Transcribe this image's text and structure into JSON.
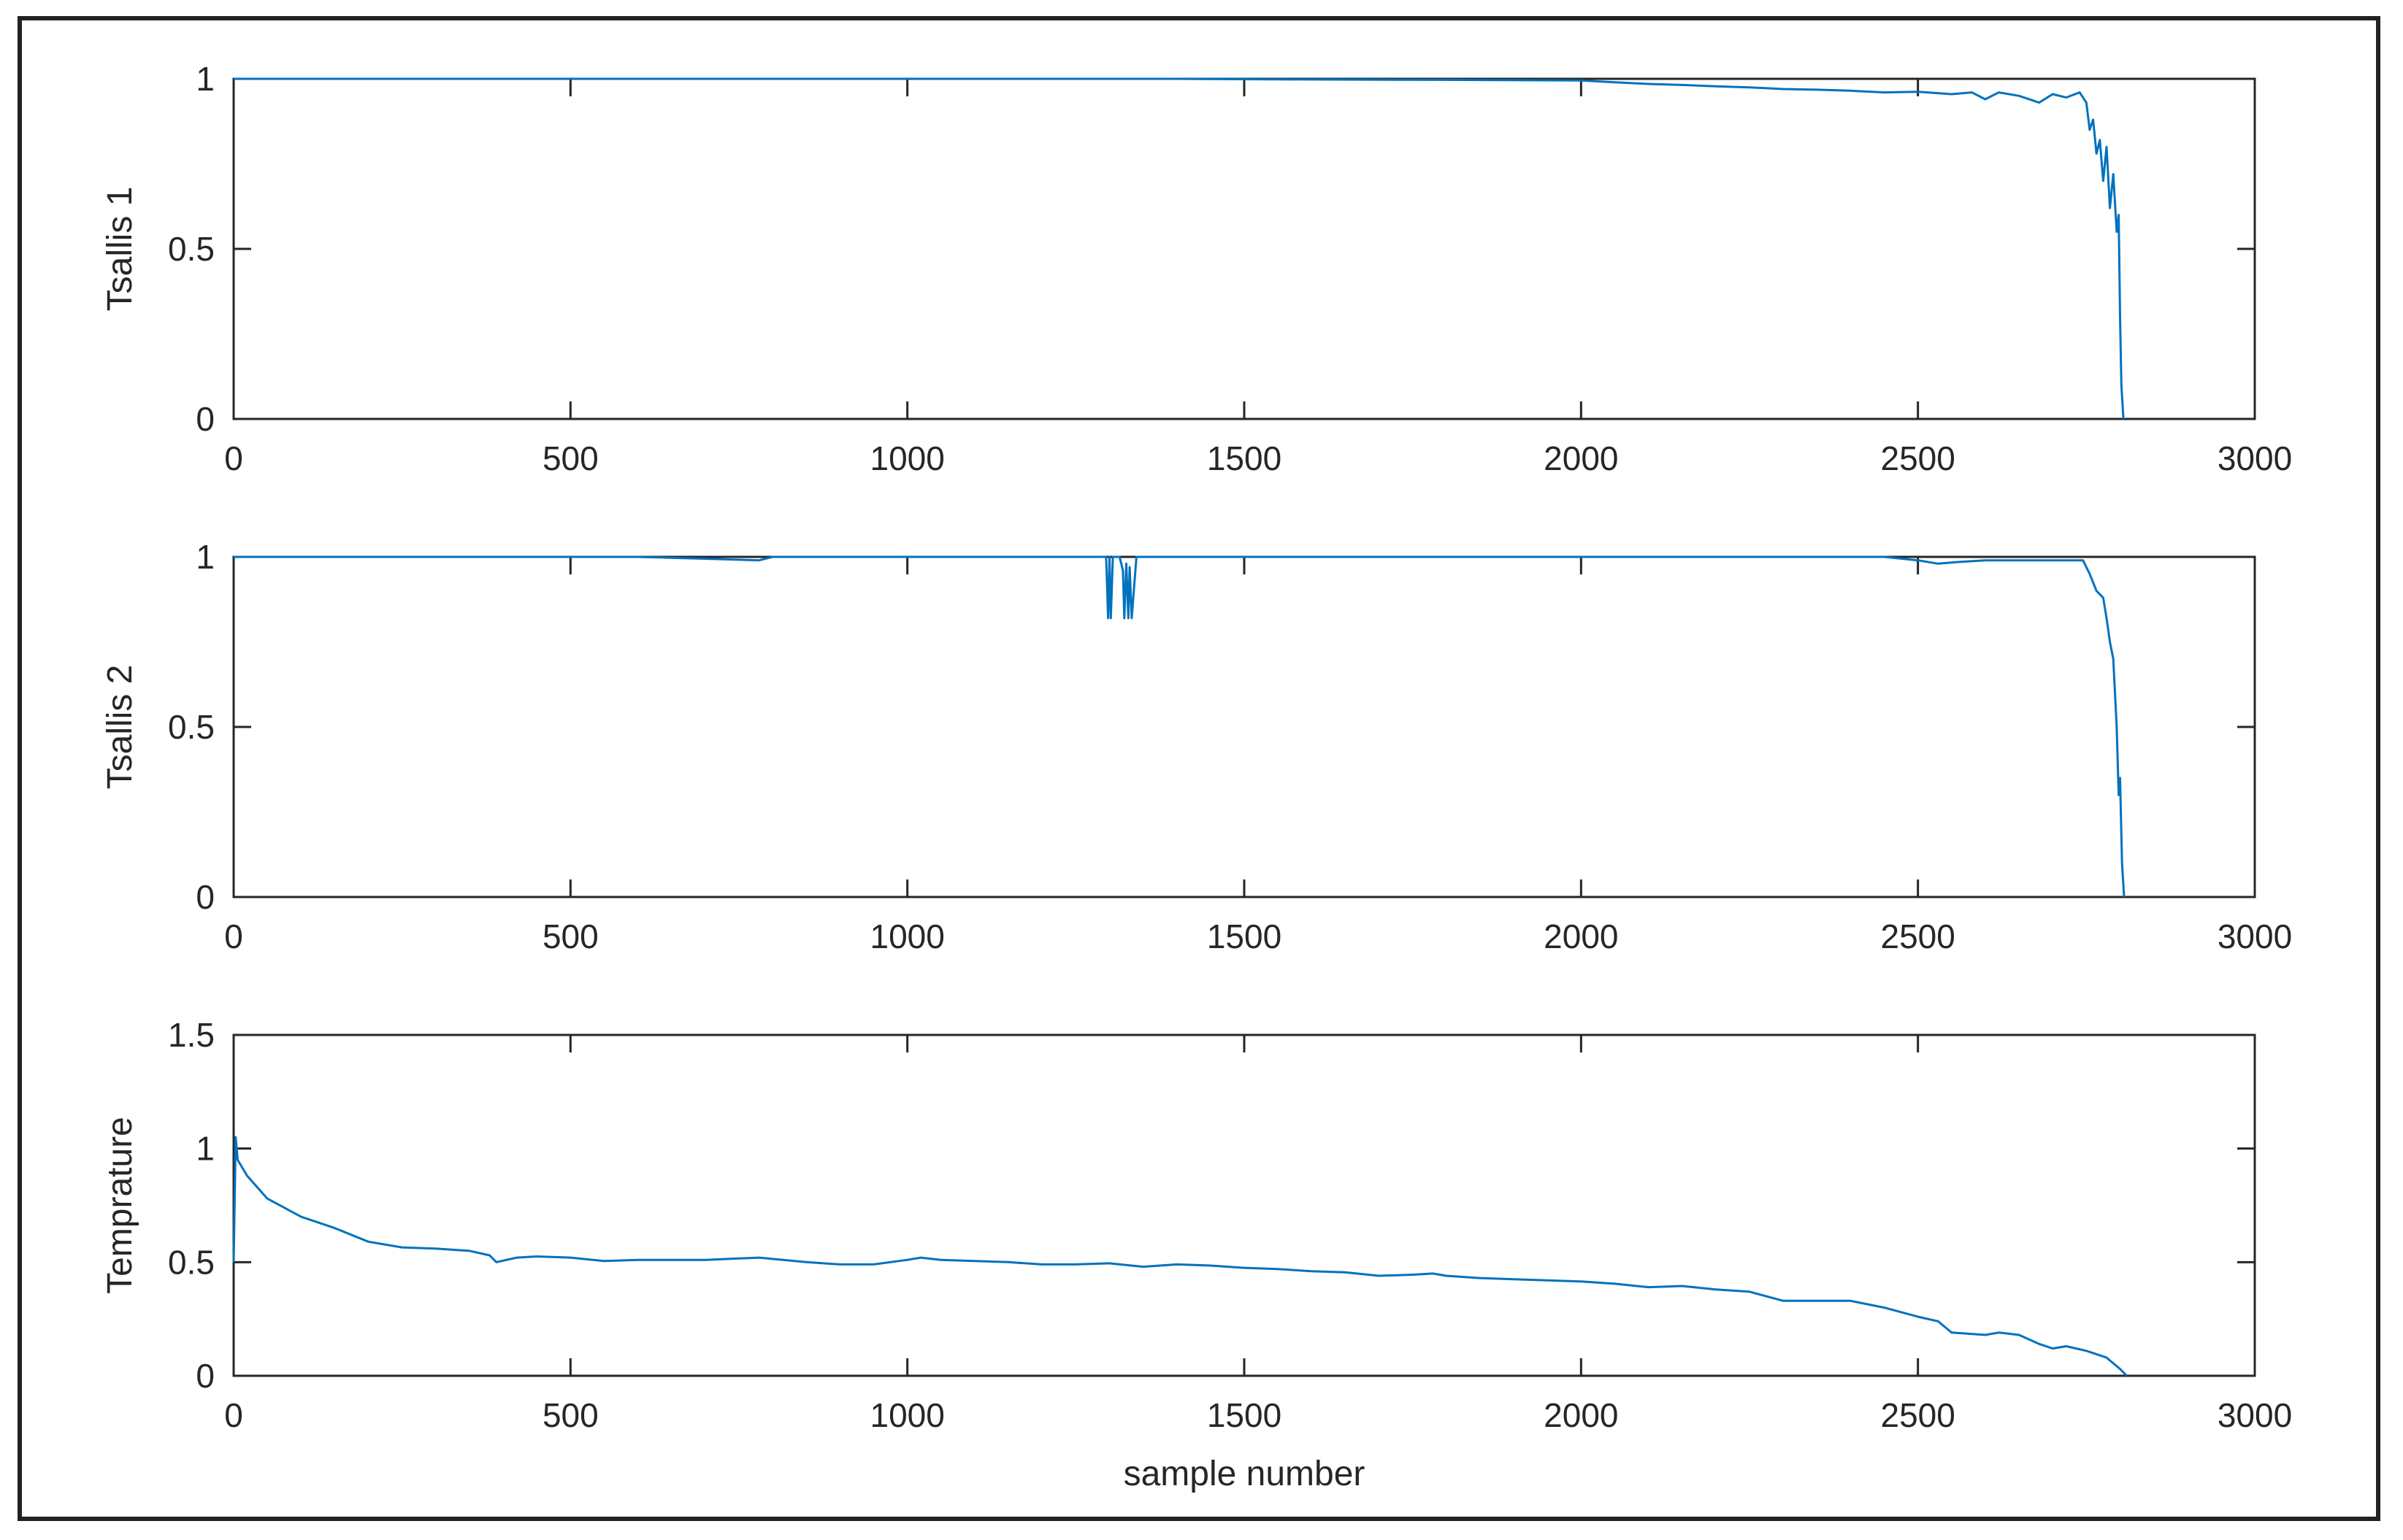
{
  "chart_data": [
    {
      "type": "line",
      "ylabel": "Tsallis 1",
      "xlim": [
        0,
        3000
      ],
      "ylim": [
        0,
        1
      ],
      "xticks": [
        "0",
        "500",
        "1000",
        "1500",
        "2000",
        "2500",
        "3000"
      ],
      "yticks": [
        "0",
        "0.5",
        "1"
      ],
      "grid": false,
      "color": "#0072BD",
      "series": [
        {
          "x": [
            0,
            200,
            400,
            600,
            800,
            1000,
            1200,
            1400,
            1600,
            1800,
            2000,
            2050,
            2100,
            2150,
            2200,
            2250,
            2300,
            2350,
            2400,
            2450,
            2500,
            2550,
            2580,
            2600,
            2620,
            2650,
            2680,
            2700,
            2720,
            2740,
            2750,
            2755,
            2760,
            2765,
            2770,
            2775,
            2780,
            2785,
            2790,
            2795,
            2798,
            2800,
            2802,
            2805
          ],
          "y": [
            1.0,
            1.0,
            1.0,
            1.0,
            1.0,
            1.0,
            1.0,
            1.0,
            0.998,
            0.997,
            0.995,
            0.99,
            0.985,
            0.982,
            0.978,
            0.975,
            0.97,
            0.968,
            0.965,
            0.96,
            0.962,
            0.955,
            0.96,
            0.94,
            0.96,
            0.95,
            0.93,
            0.955,
            0.945,
            0.96,
            0.93,
            0.85,
            0.88,
            0.78,
            0.82,
            0.7,
            0.8,
            0.62,
            0.72,
            0.55,
            0.6,
            0.3,
            0.1,
            0.0
          ]
        }
      ]
    },
    {
      "type": "line",
      "ylabel": "Tsallis 2",
      "xlim": [
        0,
        3000
      ],
      "ylim": [
        0,
        1
      ],
      "xticks": [
        "0",
        "500",
        "1000",
        "1500",
        "2000",
        "2500",
        "3000"
      ],
      "yticks": [
        "0",
        "0.5",
        "1"
      ],
      "grid": false,
      "color": "#0072BD",
      "series": [
        {
          "x": [
            0,
            200,
            400,
            600,
            780,
            800,
            1000,
            1200,
            1295,
            1298,
            1300,
            1302,
            1305,
            1315,
            1320,
            1322,
            1325,
            1328,
            1330,
            1333,
            1340,
            1400,
            1600,
            1800,
            2000,
            2200,
            2450,
            2500,
            2530,
            2560,
            2600,
            2700,
            2745,
            2755,
            2765,
            2775,
            2780,
            2785,
            2790,
            2795,
            2798,
            2800,
            2803,
            2806
          ],
          "y": [
            1.0,
            1.0,
            1.0,
            1.0,
            0.99,
            1.0,
            1.0,
            1.0,
            1.0,
            0.82,
            1.0,
            0.82,
            1.0,
            1.0,
            0.96,
            0.82,
            0.98,
            0.82,
            0.97,
            0.82,
            1.0,
            1.0,
            1.0,
            1.0,
            1.0,
            1.0,
            1.0,
            0.99,
            0.98,
            0.985,
            0.99,
            0.99,
            0.99,
            0.95,
            0.9,
            0.88,
            0.82,
            0.75,
            0.7,
            0.5,
            0.3,
            0.35,
            0.1,
            0.0
          ]
        }
      ]
    },
    {
      "type": "line",
      "ylabel": "Temprature",
      "xlabel": "sample number",
      "xlim": [
        0,
        3000
      ],
      "ylim": [
        0,
        1.5
      ],
      "xticks": [
        "0",
        "500",
        "1000",
        "1500",
        "2000",
        "2500",
        "3000"
      ],
      "yticks": [
        "0",
        "0.5",
        "1",
        "1.5"
      ],
      "grid": false,
      "color": "#0072BD",
      "series": [
        {
          "x": [
            0,
            3,
            6,
            20,
            50,
            100,
            150,
            200,
            250,
            300,
            350,
            380,
            390,
            420,
            450,
            500,
            550,
            600,
            700,
            780,
            850,
            900,
            950,
            1000,
            1020,
            1050,
            1100,
            1150,
            1200,
            1250,
            1300,
            1350,
            1400,
            1450,
            1500,
            1550,
            1600,
            1650,
            1700,
            1750,
            1780,
            1800,
            1850,
            1900,
            1950,
            2000,
            2050,
            2100,
            2150,
            2200,
            2250,
            2300,
            2350,
            2400,
            2450,
            2500,
            2530,
            2550,
            2600,
            2620,
            2650,
            2680,
            2700,
            2720,
            2750,
            2780,
            2800,
            2810
          ],
          "y": [
            0.5,
            1.05,
            0.95,
            0.88,
            0.78,
            0.7,
            0.65,
            0.59,
            0.565,
            0.56,
            0.55,
            0.53,
            0.5,
            0.52,
            0.525,
            0.52,
            0.505,
            0.51,
            0.51,
            0.52,
            0.5,
            0.49,
            0.49,
            0.51,
            0.52,
            0.51,
            0.505,
            0.5,
            0.49,
            0.49,
            0.495,
            0.48,
            0.49,
            0.485,
            0.475,
            0.47,
            0.46,
            0.455,
            0.44,
            0.445,
            0.45,
            0.44,
            0.43,
            0.425,
            0.42,
            0.415,
            0.405,
            0.39,
            0.395,
            0.38,
            0.37,
            0.33,
            0.33,
            0.33,
            0.3,
            0.26,
            0.24,
            0.19,
            0.18,
            0.19,
            0.18,
            0.14,
            0.12,
            0.13,
            0.11,
            0.08,
            0.03,
            0.0
          ]
        }
      ]
    }
  ]
}
